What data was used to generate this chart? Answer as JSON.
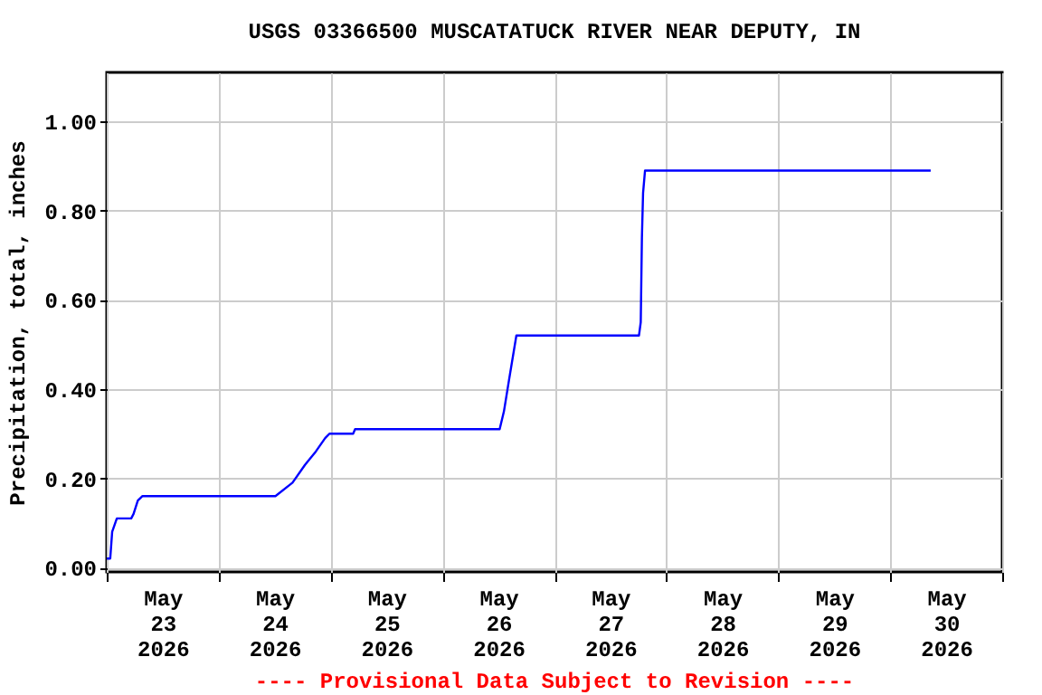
{
  "chart_data": {
    "type": "line",
    "title": "USGS 03366500 MUSCATATUCK RIVER NEAR DEPUTY, IN",
    "ylabel": "Precipitation, total, inches",
    "annotations": [
      "---- Provisional Data Subject to Revision ----"
    ],
    "x": [
      "2026-05-23T00:00",
      "2026-05-23T00:45",
      "2026-05-23T01:10",
      "2026-05-23T02:10",
      "2026-05-23T05:15",
      "2026-05-23T05:45",
      "2026-05-23T06:40",
      "2026-05-23T07:40",
      "2026-05-24T12:10",
      "2026-05-24T15:50",
      "2026-05-24T18:30",
      "2026-05-24T20:50",
      "2026-05-24T22:50",
      "2026-05-24T23:45",
      "2026-05-25T04:50",
      "2026-05-25T05:15",
      "2026-05-26T12:15",
      "2026-05-26T13:10",
      "2026-05-26T14:15",
      "2026-05-26T15:50",
      "2026-05-27T18:07",
      "2026-05-27T18:30",
      "2026-05-27T18:45",
      "2026-05-27T19:00",
      "2026-05-27T19:25",
      "2026-05-30T08:40"
    ],
    "series": [
      {
        "color": "#0000ff",
        "values": [
          0.02,
          0.02,
          0.08,
          0.11,
          0.11,
          0.12,
          0.15,
          0.16,
          0.16,
          0.19,
          0.23,
          0.26,
          0.29,
          0.3,
          0.3,
          0.31,
          0.31,
          0.35,
          0.42,
          0.52,
          0.52,
          0.55,
          0.74,
          0.84,
          0.89,
          0.89
        ]
      }
    ],
    "xlim": [
      "2026-05-23T00:00",
      "2026-05-31T00:00"
    ],
    "xticks": [
      {
        "value": "2026-05-23T00:00",
        "label": null
      },
      {
        "value": "2026-05-23T12:00",
        "label": "May\n23\n2026"
      },
      {
        "value": "2026-05-24T00:00",
        "label": null
      },
      {
        "value": "2026-05-24T12:00",
        "label": "May\n24\n2026"
      },
      {
        "value": "2026-05-25T00:00",
        "label": null
      },
      {
        "value": "2026-05-25T12:00",
        "label": "May\n25\n2026"
      },
      {
        "value": "2026-05-26T00:00",
        "label": null
      },
      {
        "value": "2026-05-26T12:00",
        "label": "May\n26\n2026"
      },
      {
        "value": "2026-05-27T00:00",
        "label": null
      },
      {
        "value": "2026-05-27T12:00",
        "label": "May\n27\n2026"
      },
      {
        "value": "2026-05-28T00:00",
        "label": null
      },
      {
        "value": "2026-05-28T12:00",
        "label": "May\n28\n2026"
      },
      {
        "value": "2026-05-29T00:00",
        "label": null
      },
      {
        "value": "2026-05-29T12:00",
        "label": "May\n29\n2026"
      },
      {
        "value": "2026-05-30T00:00",
        "label": null
      },
      {
        "value": "2026-05-30T12:00",
        "label": "May\n30\n2026"
      },
      {
        "value": "2026-05-31T00:00",
        "label": null
      }
    ],
    "ylim": [
      -0.01,
      1.11
    ],
    "yticks": [
      {
        "value": 0,
        "label": "0.00"
      },
      {
        "value": 0.2,
        "label": "0.20"
      },
      {
        "value": 0.4,
        "label": "0.40"
      },
      {
        "value": 0.6,
        "label": "0.60"
      },
      {
        "value": 0.8,
        "label": "0.80"
      },
      {
        "value": 1,
        "label": "1.00"
      }
    ],
    "grid": true
  }
}
